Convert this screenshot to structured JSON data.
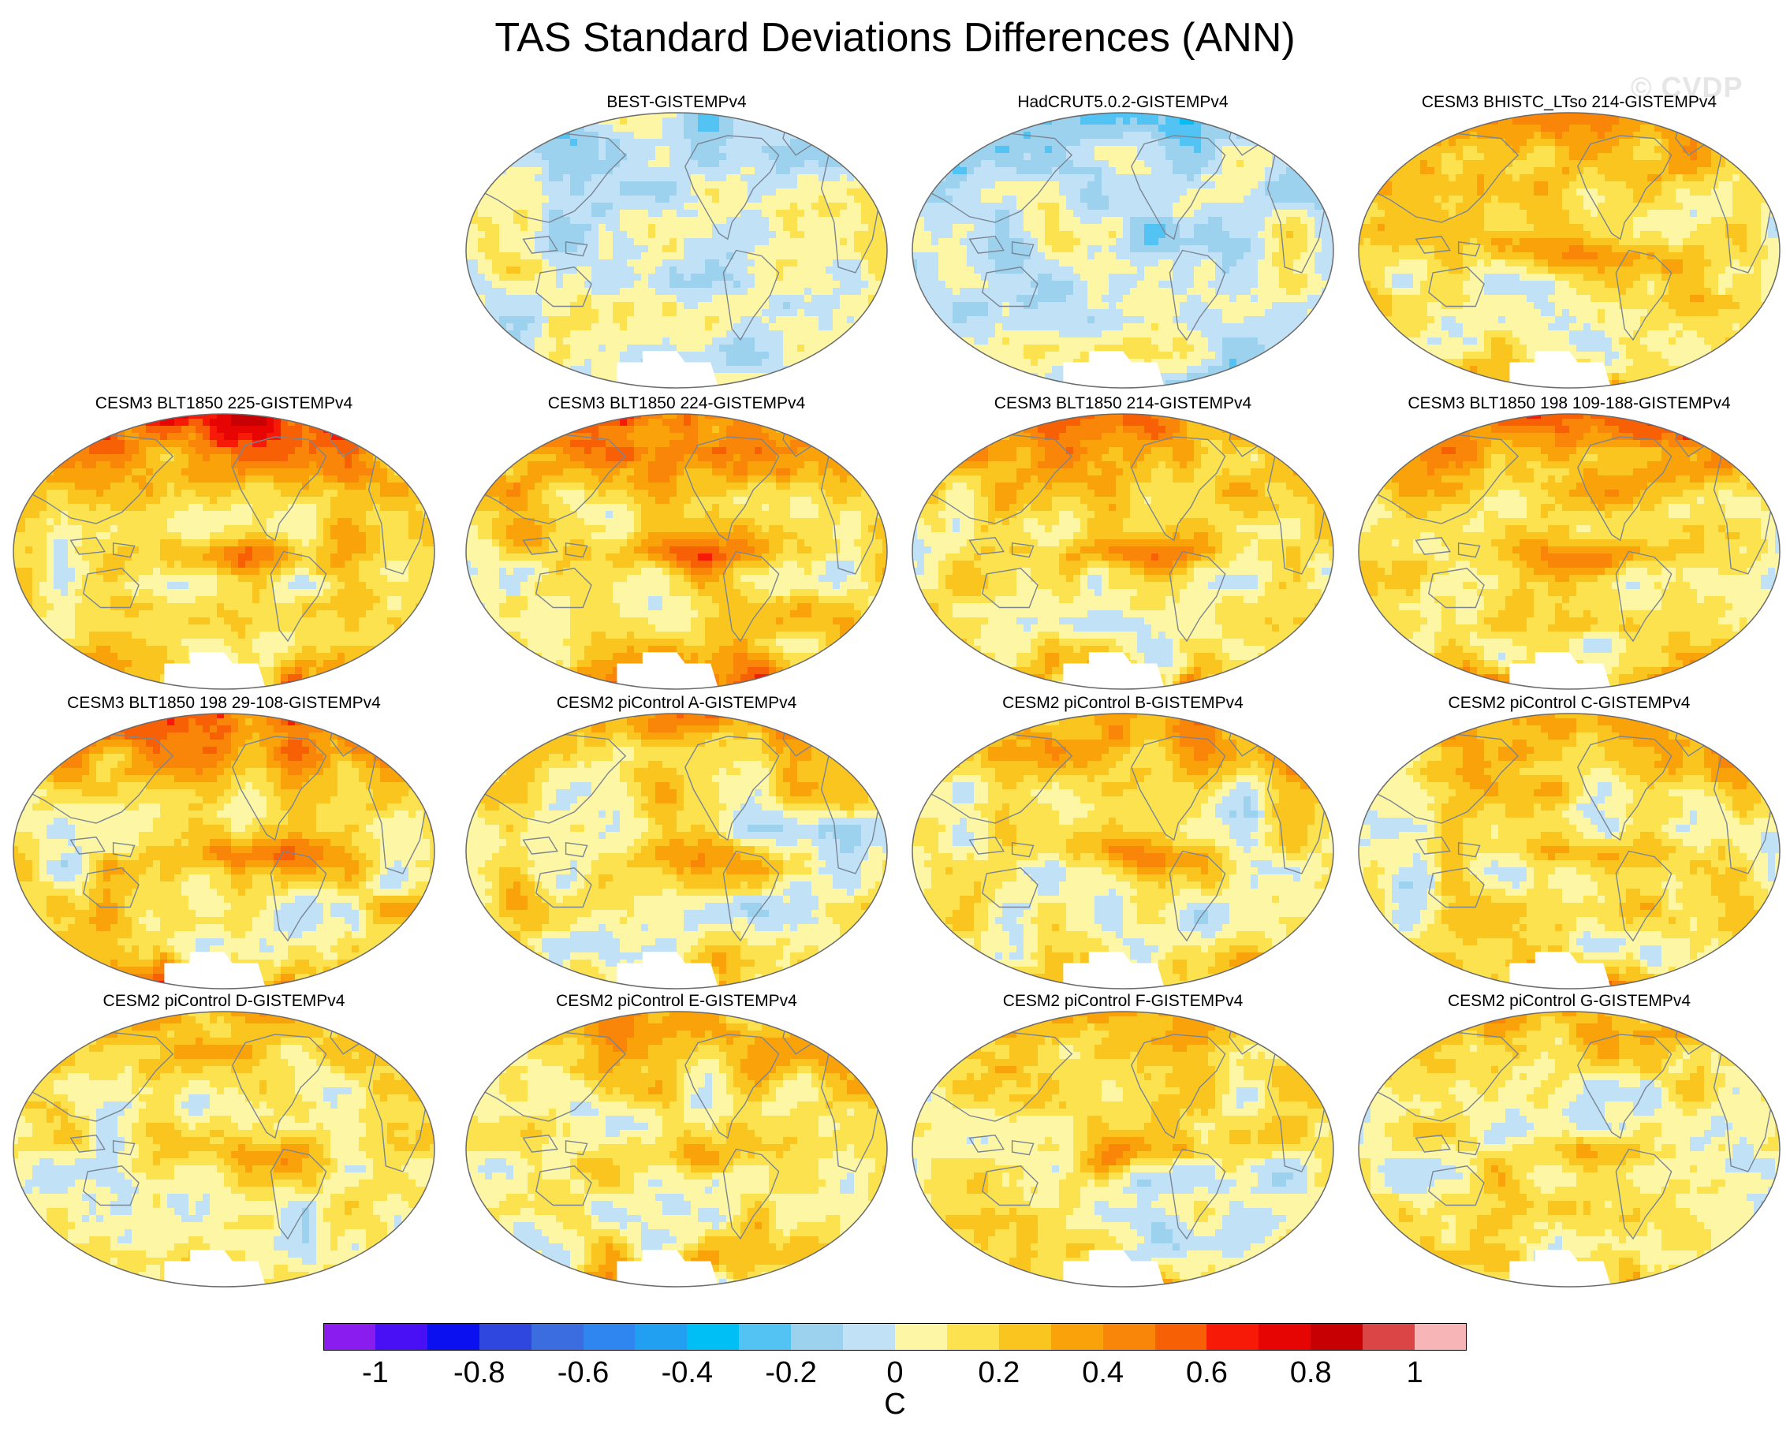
{
  "title": "TAS Standard Deviations Differences (ANN)",
  "watermark": "© CVDP",
  "colors": {
    "scale": [
      "#8a1cf0",
      "#4a10f5",
      "#0a10f0",
      "#2f47df",
      "#3b6de0",
      "#2f86f0",
      "#219ff0",
      "#00bff5",
      "#52c3f2",
      "#9dd2ee",
      "#c1e2f6",
      "#fdf6a4",
      "#fbe24e",
      "#fbc520",
      "#f9a20a",
      "#f98509",
      "#f86006",
      "#f71a07",
      "#e60503",
      "#c60003",
      "#dc4545",
      "#f8b5b8"
    ],
    "land": "#ffffff",
    "coast": "#7a8594"
  },
  "panels": [
    {
      "title": "BEST-GISTEMPv4",
      "warm": 0.05
    },
    {
      "title": "HadCRUT5.0.2-GISTEMPv4",
      "warm": -0.05
    },
    {
      "title": "CESM3 BHISTC_LTso 214-GISTEMPv4",
      "warm": 0.55
    },
    {
      "title": "CESM3 BLT1850 225-GISTEMPv4",
      "warm": 0.7
    },
    {
      "title": "CESM3 BLT1850 224-GISTEMPv4",
      "warm": 0.72
    },
    {
      "title": "CESM3 BLT1850 214-GISTEMPv4",
      "warm": 0.62
    },
    {
      "title": "CESM3 BLT1850 198 109-188-GISTEMPv4",
      "warm": 0.66
    },
    {
      "title": "CESM3 BLT1850 198 29-108-GISTEMPv4",
      "warm": 0.68
    },
    {
      "title": "CESM2 piControl A-GISTEMPv4",
      "warm": 0.48
    },
    {
      "title": "CESM2 piControl B-GISTEMPv4",
      "warm": 0.5
    },
    {
      "title": "CESM2 piControl C-GISTEMPv4",
      "warm": 0.55
    },
    {
      "title": "CESM2 piControl D-GISTEMPv4",
      "warm": 0.42
    },
    {
      "title": "CESM2 piControl E-GISTEMPv4",
      "warm": 0.46
    },
    {
      "title": "CESM2 piControl F-GISTEMPv4",
      "warm": 0.45
    },
    {
      "title": "CESM2 piControl G-GISTEMPv4",
      "warm": 0.44
    }
  ],
  "colorbar": {
    "labels": [
      "-1",
      "-0.8",
      "-0.6",
      "-0.4",
      "-0.2",
      "0",
      "0.2",
      "0.4",
      "0.6",
      "0.8",
      "1"
    ],
    "units": "C",
    "min": -1.1,
    "max": 1.1
  }
}
